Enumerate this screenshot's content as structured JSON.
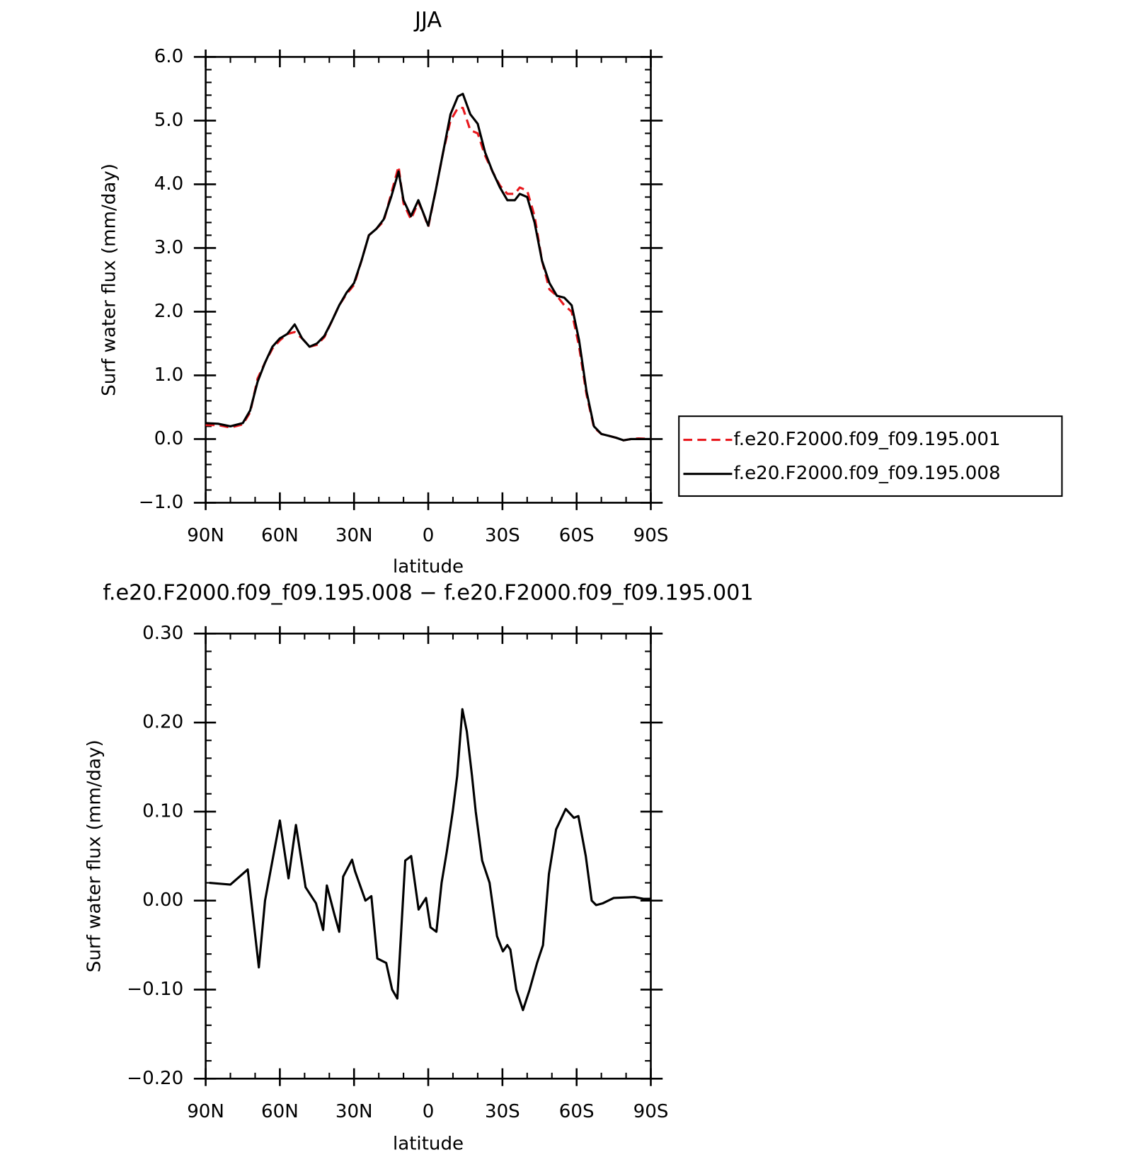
{
  "chart_data": [
    {
      "type": "line",
      "title": "JJA",
      "xlabel": "latitude",
      "ylabel": "Surf water flux (mm/day)",
      "x": [
        90,
        85,
        80,
        75,
        72,
        69,
        66,
        63,
        60,
        57,
        54,
        51,
        48,
        45,
        42,
        39,
        36,
        33,
        30,
        27,
        24,
        21,
        18,
        15,
        12,
        10,
        7,
        4,
        2,
        0,
        -3,
        -6,
        -9,
        -12,
        -14,
        -17,
        -20,
        -23,
        -26,
        -29,
        -32,
        -35,
        -37,
        -40,
        -43,
        -46,
        -49,
        -52,
        -55,
        -58,
        -61,
        -64,
        -67,
        -70,
        -73,
        -76,
        -79,
        -82,
        -85,
        -90
      ],
      "series": [
        {
          "name": "f.e20.F2000.f09_f09.195.001",
          "color": "#e8191e",
          "dash": true,
          "values": [
            0.22,
            0.22,
            0.18,
            0.23,
            0.42,
            0.95,
            1.2,
            1.42,
            1.55,
            1.65,
            1.68,
            1.58,
            1.45,
            1.48,
            1.6,
            1.85,
            2.1,
            2.28,
            2.42,
            2.8,
            3.2,
            3.3,
            3.42,
            3.85,
            4.28,
            3.7,
            3.45,
            3.72,
            3.55,
            3.33,
            3.9,
            4.5,
            5.0,
            5.2,
            5.2,
            4.85,
            4.8,
            4.45,
            4.2,
            3.98,
            3.85,
            3.85,
            3.95,
            3.9,
            3.5,
            2.8,
            2.35,
            2.25,
            2.1,
            2.0,
            1.45,
            0.7,
            0.18,
            0.08,
            0.05,
            0.02,
            -0.02,
            0,
            0.01,
            0
          ]
        },
        {
          "name": "f.e20.F2000.f09_f09.195.008",
          "color": "#000000",
          "dash": false,
          "values": [
            0.25,
            0.24,
            0.2,
            0.25,
            0.45,
            0.9,
            1.2,
            1.45,
            1.58,
            1.65,
            1.8,
            1.58,
            1.45,
            1.5,
            1.62,
            1.85,
            2.1,
            2.3,
            2.45,
            2.8,
            3.2,
            3.3,
            3.45,
            3.8,
            4.2,
            3.75,
            3.5,
            3.75,
            3.55,
            3.35,
            3.9,
            4.5,
            5.1,
            5.38,
            5.42,
            5.1,
            4.95,
            4.5,
            4.2,
            3.95,
            3.75,
            3.75,
            3.85,
            3.8,
            3.4,
            2.8,
            2.45,
            2.25,
            2.22,
            2.1,
            1.55,
            0.75,
            0.2,
            0.08,
            0.05,
            0.02,
            -0.02,
            0,
            0,
            0
          ]
        }
      ],
      "xlim": [
        90,
        -90
      ],
      "xticks": [
        {
          "value": 90,
          "label": "90N"
        },
        {
          "value": 60,
          "label": "60N"
        },
        {
          "value": 30,
          "label": "30N"
        },
        0,
        {
          "value": -30,
          "label": "30S"
        },
        {
          "value": -60,
          "label": "60S"
        },
        {
          "value": -90,
          "label": "90S"
        }
      ],
      "ylim": [
        -1,
        6
      ],
      "yticks": [
        {
          "value": -1,
          "label": "−1.0"
        },
        {
          "value": 0,
          "label": "0.0"
        },
        {
          "value": 1,
          "label": "1.0"
        },
        {
          "value": 2,
          "label": "2.0"
        },
        {
          "value": 3,
          "label": "3.0"
        },
        {
          "value": 4,
          "label": "4.0"
        },
        {
          "value": 5,
          "label": "5.0"
        },
        {
          "value": 6,
          "label": "6.0"
        }
      ],
      "legend": "right"
    },
    {
      "type": "line",
      "title": "f.e20.F2000.f09_f09.195.008 − f.e20.F2000.f09_f09.195.001",
      "xlabel": "latitude",
      "ylabel": "Surf water flux (mm/day)",
      "x": [
        88.5,
        80,
        73,
        68.5,
        66,
        60,
        56.5,
        53.5,
        49.6,
        45.4,
        42.5,
        41,
        38,
        36,
        34.4,
        30.8,
        29.6,
        25.4,
        23,
        20.6,
        17,
        14.6,
        12.5,
        9.3,
        6.9,
        3.9,
        0.9,
        -0.9,
        -3.3,
        -5.4,
        -7.5,
        -9.9,
        -11.7,
        -13.8,
        -15.6,
        -17.7,
        -19.2,
        -21.8,
        -24.8,
        -27.8,
        -30.2,
        -32,
        -33.2,
        -35.6,
        -38.3,
        -41,
        -44,
        -46.4,
        -48.8,
        -51.7,
        -55.6,
        -58.9,
        -60.7,
        -63.7,
        -66.1,
        -67.9,
        -70.6,
        -75,
        -83.4,
        -87,
        -90
      ],
      "series": [
        {
          "color": "#000000",
          "dash": false,
          "values": [
            0.02,
            0.018,
            0.035,
            -0.075,
            0,
            0.09,
            0.025,
            0.085,
            0.015,
            -0.003,
            -0.033,
            0.017,
            -0.015,
            -0.035,
            0.027,
            0.046,
            0.033,
            0,
            0.005,
            -0.065,
            -0.07,
            -0.1,
            -0.11,
            0.045,
            0.05,
            -0.01,
            0.003,
            -0.03,
            -0.035,
            0.02,
            0.055,
            0.1,
            0.14,
            0.215,
            0.19,
            0.14,
            0.1,
            0.045,
            0.02,
            -0.04,
            -0.057,
            -0.05,
            -0.055,
            -0.1,
            -0.123,
            -0.1,
            -0.07,
            -0.05,
            0.03,
            0.08,
            0.103,
            0.093,
            0.095,
            0.05,
            0,
            -0.005,
            -0.003,
            0.003,
            0.004,
            0.002,
            0.002
          ]
        }
      ],
      "xlim": [
        90,
        -90
      ],
      "xticks": [
        {
          "value": 90,
          "label": "90N"
        },
        {
          "value": 60,
          "label": "60N"
        },
        {
          "value": 30,
          "label": "30N"
        },
        0,
        {
          "value": -30,
          "label": "30S"
        },
        {
          "value": -60,
          "label": "60S"
        },
        {
          "value": -90,
          "label": "90S"
        }
      ],
      "ylim": [
        -0.2,
        0.3
      ],
      "yticks": [
        {
          "value": -0.2,
          "label": "−0.20"
        },
        {
          "value": -0.1,
          "label": "−0.10"
        },
        {
          "value": 0,
          "label": "0.00"
        },
        {
          "value": 0.1,
          "label": "0.10"
        },
        {
          "value": 0.2,
          "label": "0.20"
        },
        {
          "value": 0.3,
          "label": "0.30"
        }
      ]
    }
  ]
}
